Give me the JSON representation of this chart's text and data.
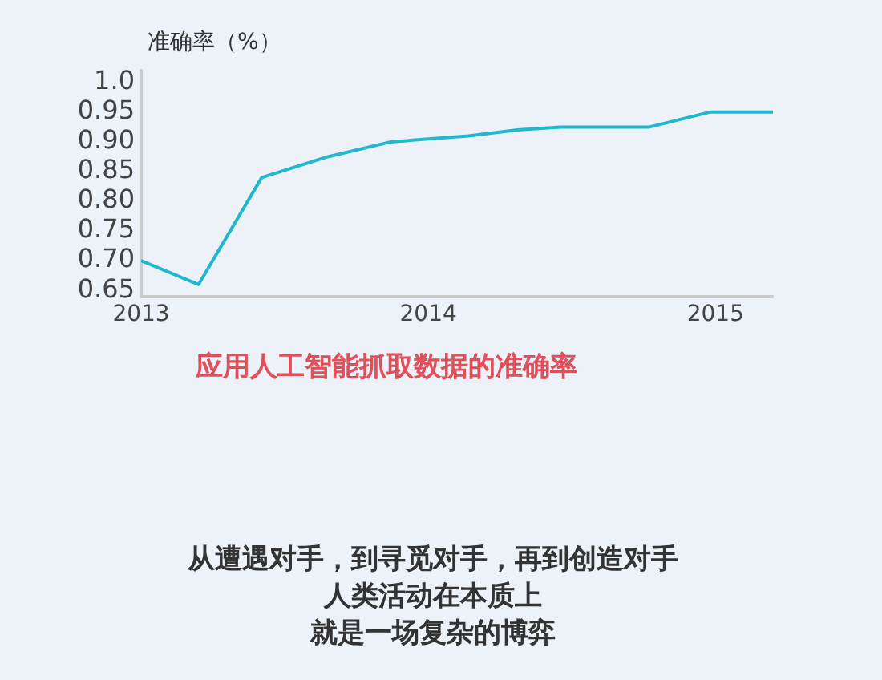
{
  "chart_data": {
    "type": "line",
    "title": "应用人工智能抓取数据的准确率",
    "ylabel": "准确率（%）",
    "x": [
      2013,
      2013.2,
      2013.42,
      2013.65,
      2013.87,
      2014.14,
      2014.31,
      2014.46,
      2014.77,
      2014.98,
      2015.2
    ],
    "series": [
      {
        "color": "#1fb8cc",
        "values": [
          0.7,
          0.66,
          0.84,
          0.875,
          0.9,
          0.91,
          0.92,
          0.925,
          0.925,
          0.95,
          0.95
        ]
      }
    ],
    "xlim": [
      2013,
      2015.2
    ],
    "xticks": [
      2013,
      2014,
      2015
    ],
    "ylim": [
      0.64,
      1.02
    ],
    "yticks": [
      {
        "value": 0.65,
        "label": "0.65"
      },
      {
        "value": 0.7,
        "label": "0.70"
      },
      {
        "value": 0.75,
        "label": "0.75"
      },
      {
        "value": 0.8,
        "label": "0.80"
      },
      {
        "value": 0.85,
        "label": "0.85"
      },
      {
        "value": 0.9,
        "label": "0.90"
      },
      {
        "value": 0.95,
        "label": "0.95"
      },
      {
        "value": 1,
        "label": "1.0"
      }
    ],
    "annotations": [
      "从遭遇对手，到寻觅对手，再到创造对手",
      "人类活动在本质上",
      "就是一场复杂的博弈"
    ],
    "marker": "none",
    "line_style": "solid",
    "legend": false
  }
}
